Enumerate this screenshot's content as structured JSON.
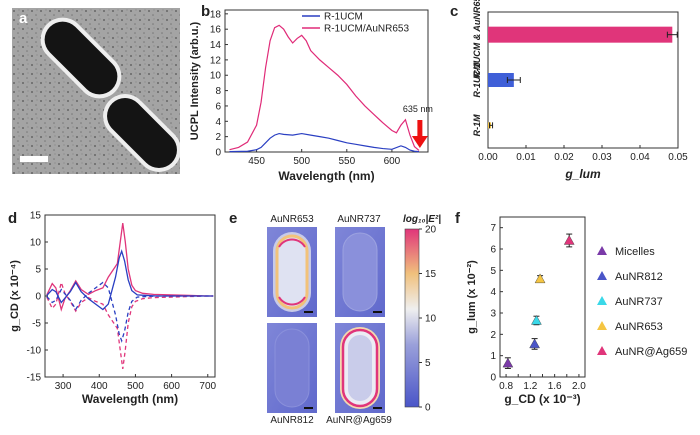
{
  "panels": {
    "a": {
      "label": "a"
    },
    "b": {
      "label": "b",
      "annotation": "635 nm",
      "colors": {
        "r1ucm": "#2a3fc2",
        "au": "#e02b78",
        "arrow": "#ee1111"
      }
    },
    "c": {
      "label": "c"
    },
    "d": {
      "label": "d"
    },
    "e": {
      "label": "e",
      "tiles": [
        "AuNR653",
        "AuNR737",
        "AuNR812",
        "AuNR@Ag659"
      ],
      "colorbar_label": "log₁₀|E²|",
      "colorbar_ticks": [
        "20",
        "15",
        "10",
        "5",
        "0"
      ],
      "colorbar_range": [
        0,
        20
      ]
    },
    "f": {
      "label": "f"
    }
  },
  "chart_data": [
    {
      "id": "b",
      "type": "line",
      "xlabel": "Wavelength (nm)",
      "ylabel": "UCPL Intensity (arb.u.)",
      "xlim": [
        415,
        640
      ],
      "ylim": [
        0,
        18.5
      ],
      "xticks": [
        "450",
        "500",
        "550",
        "600"
      ],
      "yticks": [
        "0",
        "2",
        "4",
        "6",
        "8",
        "10",
        "12",
        "14",
        "16",
        "18"
      ],
      "series": [
        {
          "name": "R-1UCM",
          "color": "#2a3fc2",
          "x": [
            420,
            440,
            450,
            455,
            460,
            465,
            470,
            475,
            480,
            490,
            500,
            510,
            520,
            530,
            540,
            550,
            560,
            570,
            580,
            590,
            600,
            610,
            615,
            620,
            625,
            630
          ],
          "y": [
            0.05,
            0.1,
            0.3,
            0.6,
            1.2,
            1.8,
            2.2,
            2.4,
            2.3,
            2.2,
            2.4,
            2.2,
            2.0,
            1.8,
            1.5,
            1.2,
            1.0,
            0.8,
            0.6,
            0.45,
            0.35,
            0.8,
            0.6,
            0.25,
            0.1,
            0.05
          ]
        },
        {
          "name": "R-1UCM/AuNR653",
          "color": "#e02b78",
          "x": [
            420,
            430,
            440,
            450,
            455,
            460,
            465,
            470,
            475,
            480,
            485,
            490,
            495,
            500,
            505,
            510,
            520,
            530,
            540,
            550,
            560,
            570,
            580,
            590,
            600,
            605,
            610,
            615,
            620,
            625,
            630
          ],
          "y": [
            0.3,
            0.6,
            1.3,
            3.5,
            6.5,
            11.0,
            14.5,
            16.2,
            16.5,
            16.0,
            15.0,
            14.2,
            14.8,
            15.2,
            14.5,
            13.2,
            12.0,
            11.0,
            10.0,
            8.8,
            7.3,
            6.0,
            4.9,
            3.8,
            2.8,
            2.5,
            3.5,
            4.2,
            2.2,
            0.7,
            0.2
          ]
        }
      ]
    },
    {
      "id": "c",
      "type": "bar",
      "orientation": "horizontal",
      "xlabel": "g_lum",
      "xlim": [
        0,
        0.05
      ],
      "xticks": [
        "0.00",
        "0.01",
        "0.02",
        "0.03",
        "0.04",
        "0.05"
      ],
      "categories": [
        "R-1UCM & AuNR653",
        "R-1UCM",
        "R-1M"
      ],
      "values": [
        0.0485,
        0.0068,
        0.0008
      ],
      "errors": [
        0.0013,
        0.0017,
        0.0004
      ],
      "colors": [
        "#e0357a",
        "#3f5fd8",
        "#f5c542"
      ]
    },
    {
      "id": "d",
      "type": "line",
      "xlabel": "Wavelength (nm)",
      "ylabel": "g_CD (x 10⁻⁴)",
      "xlim": [
        250,
        720
      ],
      "ylim": [
        -15,
        15
      ],
      "xticks": [
        "300",
        "400",
        "500",
        "600",
        "700"
      ],
      "yticks": [
        "-15",
        "-10",
        "-5",
        "0",
        "5",
        "10",
        "15"
      ],
      "series": [
        {
          "color": "#e0357a",
          "dash": false,
          "x": [
            255,
            270,
            280,
            295,
            305,
            320,
            335,
            350,
            370,
            390,
            410,
            425,
            440,
            450,
            458,
            465,
            472,
            480,
            490,
            500,
            520,
            550,
            600,
            650,
            700,
            715
          ],
          "y": [
            0.2,
            2.3,
            1.5,
            -2.5,
            -0.5,
            1.0,
            2.8,
            1.2,
            0.3,
            1.0,
            1.5,
            3.5,
            5.0,
            6.0,
            10.0,
            13.5,
            10.0,
            5.0,
            2.0,
            1.0,
            0.5,
            0.3,
            0.2,
            0.1,
            0.0,
            0.0
          ]
        },
        {
          "color": "#e0357a",
          "dash": true,
          "x": [
            255,
            270,
            280,
            295,
            305,
            320,
            335,
            350,
            370,
            390,
            410,
            425,
            440,
            450,
            458,
            465,
            472,
            480,
            490,
            500,
            520,
            550,
            600,
            650,
            700,
            715
          ],
          "y": [
            -0.2,
            -2.3,
            -1.5,
            2.5,
            0.5,
            -1.0,
            -2.8,
            -1.2,
            -0.3,
            -1.0,
            -1.5,
            -3.5,
            -5.0,
            -6.0,
            -10.0,
            -13.5,
            -10.0,
            -5.0,
            -2.0,
            -1.0,
            -0.5,
            -0.3,
            -0.2,
            -0.1,
            0.0,
            0.0
          ]
        },
        {
          "color": "#2a3fc2",
          "dash": false,
          "x": [
            255,
            270,
            280,
            295,
            305,
            320,
            335,
            350,
            370,
            390,
            410,
            425,
            435,
            445,
            455,
            462,
            470,
            480,
            490,
            505,
            530,
            560,
            600,
            650,
            715
          ],
          "y": [
            0.1,
            1.2,
            0.8,
            -1.2,
            -0.4,
            0.8,
            2.5,
            0.8,
            -0.5,
            -1.5,
            -2.5,
            -1.5,
            1.0,
            3.5,
            7.0,
            8.3,
            6.5,
            3.0,
            1.0,
            0.2,
            0.1,
            0.0,
            0.0,
            0.0,
            0.0
          ]
        },
        {
          "color": "#2a3fc2",
          "dash": true,
          "x": [
            255,
            270,
            280,
            295,
            305,
            320,
            335,
            350,
            370,
            390,
            410,
            425,
            435,
            445,
            455,
            462,
            470,
            480,
            490,
            505,
            530,
            560,
            600,
            650,
            715
          ],
          "y": [
            -0.1,
            -1.2,
            -0.8,
            1.2,
            0.4,
            -0.8,
            -2.5,
            -0.8,
            0.5,
            1.5,
            2.5,
            1.5,
            -1.0,
            -3.5,
            -7.0,
            -8.3,
            -6.5,
            -3.0,
            -1.0,
            -0.2,
            -0.1,
            0.0,
            0.0,
            0.0,
            0.0
          ]
        }
      ]
    },
    {
      "id": "f",
      "type": "scatter",
      "xlabel": "g_CD (x 10⁻³)",
      "ylabel": "g_lum (x 10⁻²)",
      "xlim": [
        0.7,
        2.1
      ],
      "ylim": [
        0,
        7.5
      ],
      "xticks": [
        "0.8",
        "1.0",
        "1.2",
        "1.4",
        "1.6",
        "1.8",
        "2.0"
      ],
      "yticks": [
        "0",
        "1",
        "2",
        "3",
        "4",
        "5",
        "6",
        "7"
      ],
      "series": [
        {
          "name": "Micelles",
          "color": "#7a3aa8",
          "x": [
            0.83
          ],
          "y": [
            0.65
          ],
          "err": [
            0.25
          ]
        },
        {
          "name": "AuNR812",
          "color": "#4a55c8",
          "x": [
            1.27
          ],
          "y": [
            1.55
          ],
          "err": [
            0.25
          ]
        },
        {
          "name": "AuNR737",
          "color": "#3ad8e8",
          "x": [
            1.3
          ],
          "y": [
            2.65
          ],
          "err": [
            0.2
          ]
        },
        {
          "name": "AuNR653",
          "color": "#f5c542",
          "x": [
            1.36
          ],
          "y": [
            4.6
          ],
          "err": [
            0.15
          ]
        },
        {
          "name": "AuNR@Ag659",
          "color": "#e0357a",
          "x": [
            1.84
          ],
          "y": [
            6.4
          ],
          "err": [
            0.3
          ]
        }
      ]
    }
  ]
}
